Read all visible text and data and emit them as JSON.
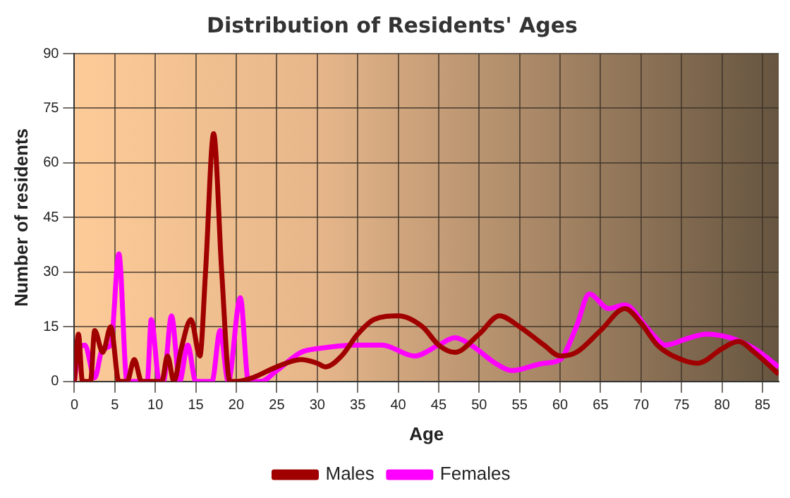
{
  "chart_data": {
    "type": "line",
    "title": "Distribution of Residents' Ages",
    "xlabel": "Age",
    "ylabel": "Number of residents",
    "xlim": [
      0,
      87
    ],
    "xticks": [
      0,
      5,
      10,
      15,
      20,
      25,
      30,
      35,
      40,
      45,
      50,
      55,
      60,
      65,
      70,
      75,
      80,
      85
    ],
    "ylim": [
      0,
      90
    ],
    "yticks": [
      0,
      15,
      30,
      45,
      60,
      75,
      90
    ],
    "grid": true,
    "legend": "bottom",
    "marker": "none",
    "line_style": "solid",
    "series": [
      {
        "name": "Males",
        "color": "#a00000",
        "x": [
          0,
          0.5,
          1,
          2,
          2.5,
          3.5,
          4.5,
          5.5,
          6.5,
          7.4,
          8.3,
          9,
          10,
          10.8,
          11.5,
          12.3,
          13.2,
          14.4,
          15.5,
          16.2,
          17.2,
          18.2,
          19.2,
          20,
          22,
          25,
          28,
          30,
          31,
          33,
          35,
          37,
          40,
          43,
          45,
          47,
          50,
          52.5,
          55,
          58,
          60,
          62,
          65,
          68,
          70,
          72,
          75,
          77,
          80,
          82,
          84,
          87
        ],
        "values": [
          0,
          13,
          0,
          0,
          14,
          8,
          15,
          0,
          0,
          6,
          0,
          0,
          0,
          0,
          7,
          0,
          9,
          17,
          7,
          30,
          68,
          30,
          0,
          0,
          1,
          4,
          6,
          5,
          4,
          7,
          13,
          17,
          18,
          15,
          10,
          8,
          13,
          18,
          15,
          10,
          7,
          8,
          14,
          20,
          16,
          10,
          6,
          5,
          9,
          11,
          8,
          2
        ]
      },
      {
        "name": "Females",
        "color": "#ff00ff",
        "x": [
          0,
          0.5,
          1.3,
          2.5,
          3.5,
          4.5,
          5.5,
          6.5,
          8,
          9,
          9.5,
          10.5,
          11,
          12,
          13,
          14,
          15,
          17,
          18,
          19,
          20.5,
          21.5,
          23,
          25,
          28,
          30,
          35,
          38,
          42,
          45,
          47,
          49,
          52,
          54,
          58,
          60,
          62,
          63.6,
          66,
          68,
          71,
          73,
          76,
          78,
          81,
          84,
          87
        ],
        "values": [
          0,
          8,
          10,
          1,
          9,
          10,
          35,
          0,
          0,
          0,
          17,
          0,
          0,
          18,
          0,
          10,
          0,
          0,
          14,
          0,
          23,
          0,
          0,
          3,
          8,
          9,
          10,
          10,
          7,
          10,
          12,
          10,
          5,
          3,
          5,
          6,
          15,
          24,
          20,
          21,
          14,
          10,
          12,
          13,
          12,
          9,
          4
        ]
      }
    ]
  }
}
